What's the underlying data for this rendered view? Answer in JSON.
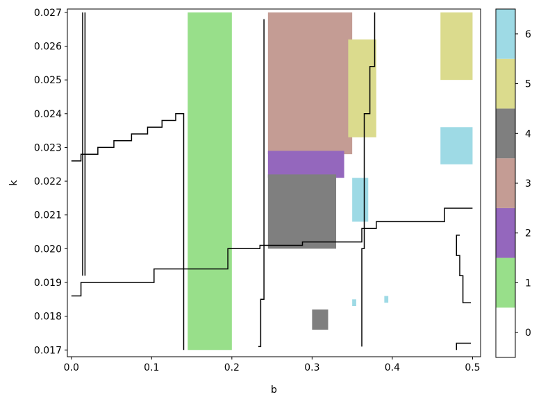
{
  "chart_data": {
    "type": "heatmap",
    "title": "",
    "xlabel": "b",
    "ylabel": "k",
    "xlim": [
      -0.005,
      0.51
    ],
    "ylim": [
      0.0168,
      0.0271
    ],
    "x_ticks": [
      {
        "value": 0.0,
        "label": "0.0"
      },
      {
        "value": 0.1,
        "label": "0.1"
      },
      {
        "value": 0.2,
        "label": "0.2"
      },
      {
        "value": 0.3,
        "label": "0.3"
      },
      {
        "value": 0.4,
        "label": "0.4"
      },
      {
        "value": 0.5,
        "label": "0.5"
      }
    ],
    "y_ticks": [
      {
        "value": 0.017,
        "label": "0.017"
      },
      {
        "value": 0.018,
        "label": "0.018"
      },
      {
        "value": 0.019,
        "label": "0.019"
      },
      {
        "value": 0.02,
        "label": "0.020"
      },
      {
        "value": 0.021,
        "label": "0.021"
      },
      {
        "value": 0.022,
        "label": "0.022"
      },
      {
        "value": 0.023,
        "label": "0.023"
      },
      {
        "value": 0.024,
        "label": "0.024"
      },
      {
        "value": 0.025,
        "label": "0.025"
      },
      {
        "value": 0.026,
        "label": "0.026"
      },
      {
        "value": 0.027,
        "label": "0.027"
      }
    ],
    "grid": false,
    "colorbar": {
      "categories": [
        {
          "value": 0,
          "label": "0",
          "color": "#ffffff"
        },
        {
          "value": 1,
          "label": "1",
          "color": "#98df8a"
        },
        {
          "value": 2,
          "label": "2",
          "color": "#9467bd"
        },
        {
          "value": 3,
          "label": "3",
          "color": "#c49c94"
        },
        {
          "value": 4,
          "label": "4",
          "color": "#7f7f7f"
        },
        {
          "value": 5,
          "label": "5",
          "color": "#dbdb8d"
        },
        {
          "value": 6,
          "label": "6",
          "color": "#9edae5"
        }
      ]
    },
    "regions": [
      {
        "value": 1,
        "x": [
          0.145,
          0.2
        ],
        "y": [
          0.017,
          0.027
        ]
      },
      {
        "value": 3,
        "x": [
          0.245,
          0.35
        ],
        "y": [
          0.0228,
          0.027
        ]
      },
      {
        "value": 2,
        "x": [
          0.245,
          0.34
        ],
        "y": [
          0.0221,
          0.0229
        ]
      },
      {
        "value": 4,
        "x": [
          0.245,
          0.33
        ],
        "y": [
          0.02,
          0.0222
        ]
      },
      {
        "value": 4,
        "x": [
          0.3,
          0.32
        ],
        "y": [
          0.0176,
          0.0182
        ]
      },
      {
        "value": 5,
        "x": [
          0.345,
          0.38
        ],
        "y": [
          0.0233,
          0.0262
        ]
      },
      {
        "value": 5,
        "x": [
          0.46,
          0.5
        ],
        "y": [
          0.025,
          0.027
        ]
      },
      {
        "value": 6,
        "x": [
          0.46,
          0.5
        ],
        "y": [
          0.0225,
          0.0236
        ]
      },
      {
        "value": 6,
        "x": [
          0.35,
          0.37
        ],
        "y": [
          0.0208,
          0.0221
        ]
      },
      {
        "value": 6,
        "x": [
          0.35,
          0.355
        ],
        "y": [
          0.0183,
          0.0185
        ]
      },
      {
        "value": 6,
        "x": [
          0.39,
          0.395
        ],
        "y": [
          0.0184,
          0.0186
        ]
      }
    ],
    "boundary_lines": [
      {
        "x": [
          0.0,
          0.012,
          0.012,
          0.033,
          0.033,
          0.053,
          0.053,
          0.075,
          0.075,
          0.095,
          0.095,
          0.113,
          0.113,
          0.13,
          0.13,
          0.14,
          0.14
        ],
        "y": [
          0.0226,
          0.0226,
          0.0228,
          0.0228,
          0.023,
          0.023,
          0.0232,
          0.0232,
          0.0234,
          0.0234,
          0.0236,
          0.0236,
          0.0238,
          0.0238,
          0.024,
          0.024,
          0.017
        ]
      },
      {
        "x": [
          0.0,
          0.012,
          0.012,
          0.103,
          0.103,
          0.195,
          0.195,
          0.235,
          0.235,
          0.288,
          0.288,
          0.362,
          0.362,
          0.38,
          0.38,
          0.465,
          0.465,
          0.5
        ],
        "y": [
          0.0186,
          0.0186,
          0.019,
          0.019,
          0.0194,
          0.0194,
          0.02,
          0.02,
          0.0201,
          0.0201,
          0.0202,
          0.0202,
          0.0206,
          0.0206,
          0.0208,
          0.0208,
          0.0212,
          0.0212
        ]
      },
      {
        "x": [
          0.014,
          0.014
        ],
        "y": [
          0.0192,
          0.027
        ]
      },
      {
        "x": [
          0.017,
          0.017
        ],
        "y": [
          0.0192,
          0.027
        ]
      },
      {
        "x": [
          0.233,
          0.236,
          0.236,
          0.24,
          0.24
        ],
        "y": [
          0.0171,
          0.0171,
          0.0185,
          0.0185,
          0.0268
        ]
      },
      {
        "x": [
          0.362,
          0.362,
          0.365,
          0.365,
          0.372,
          0.372,
          0.378,
          0.378
        ],
        "y": [
          0.0171,
          0.02,
          0.02,
          0.024,
          0.024,
          0.0254,
          0.0254,
          0.027
        ]
      },
      {
        "x": [
          0.498,
          0.488,
          0.488,
          0.484,
          0.484,
          0.48,
          0.48,
          0.484
        ],
        "y": [
          0.0184,
          0.0184,
          0.0192,
          0.0192,
          0.0198,
          0.0198,
          0.0204,
          0.0204
        ]
      },
      {
        "x": [
          0.48,
          0.48,
          0.498
        ],
        "y": [
          0.017,
          0.0172,
          0.0172
        ]
      }
    ]
  }
}
